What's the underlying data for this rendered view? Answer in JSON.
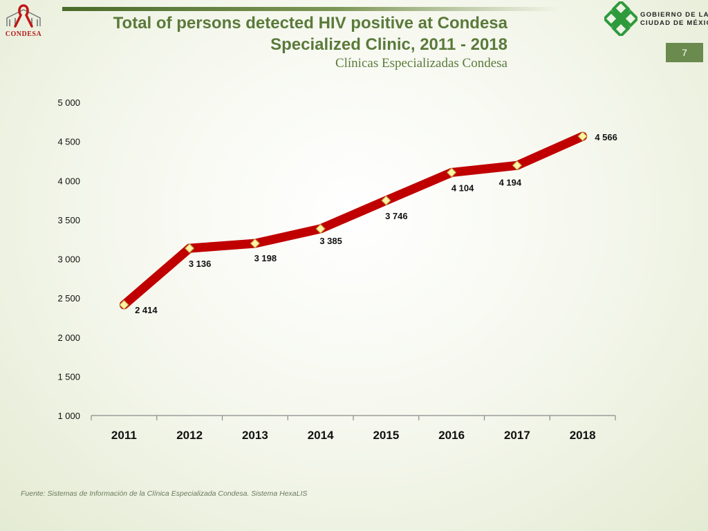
{
  "header": {
    "title_line1": "Total of persons detected HIV positive at Condesa",
    "title_line2": "Specialized Clinic, 2011 - 2018",
    "subtitle": "Clínicas Especializadas Condesa"
  },
  "logos": {
    "condesa_label": "CONDESA",
    "gov_line1": "GOBIERNO DE LA",
    "gov_line2": "CIUDAD DE MÉXICO"
  },
  "page_number": "7",
  "footer": {
    "source": "Fuente: Sistemas de Información de la Clínica Especializada Condesa. Sistema HexaLIS"
  },
  "colors": {
    "line": "#c00000",
    "marker_fill": "#fff3a8",
    "marker_stroke": "#b8a040",
    "title": "#5a7a3a",
    "page_badge": "#6b8a4e"
  },
  "chart_data": {
    "type": "line",
    "title": "Total of persons detected HIV positive at Condesa Specialized Clinic, 2011 - 2018",
    "xlabel": "",
    "ylabel": "",
    "categories": [
      "2011",
      "2012",
      "2013",
      "2014",
      "2015",
      "2016",
      "2017",
      "2018"
    ],
    "series": [
      {
        "name": "Persons detected HIV positive",
        "values": [
          2414,
          3136,
          3198,
          3385,
          3746,
          4104,
          4194,
          4566
        ],
        "labels": [
          "2 414",
          "3 136",
          "3 198",
          "3 385",
          "3 746",
          "4 104",
          "4 194",
          "4 566"
        ]
      }
    ],
    "ylim": [
      1000,
      5000
    ],
    "yticks": [
      1000,
      1500,
      2000,
      2500,
      3000,
      3500,
      4000,
      4500,
      5000
    ],
    "ytick_labels": [
      "1 000",
      "1 500",
      "2 000",
      "2 500",
      "3 000",
      "3 500",
      "4 000",
      "4 500",
      "5 000"
    ],
    "grid": false,
    "legend": "none"
  }
}
